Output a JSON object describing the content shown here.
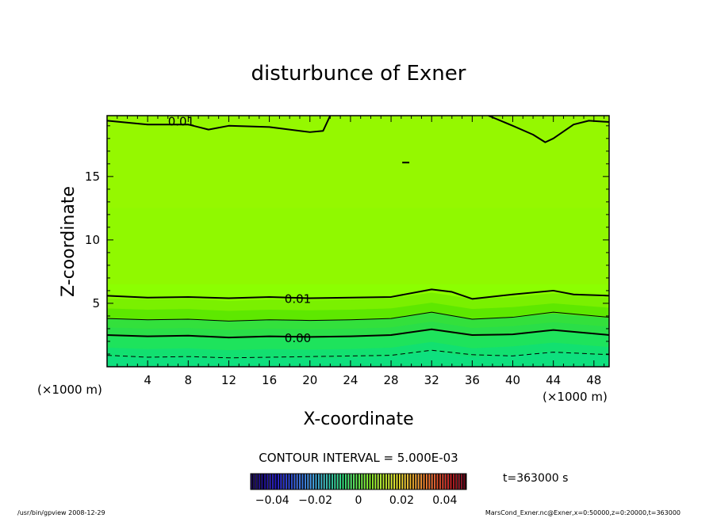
{
  "chart_data": {
    "type": "contour",
    "title": "disturbunce of Exner",
    "xlabel": "X-coordinate",
    "ylabel": "Z-coordinate",
    "x_unit": "(×1000 m)",
    "y_unit": "(×1000 m)",
    "xlim": [
      0,
      49.5
    ],
    "ylim": [
      0,
      19.8
    ],
    "x_ticks": [
      4,
      8,
      12,
      16,
      20,
      24,
      28,
      32,
      36,
      40,
      44,
      48
    ],
    "y_ticks": [
      5,
      10,
      15
    ],
    "contour_interval": "CONTOUR INTERVAL = 5.000E-03",
    "time_label": "t=363000 s",
    "colorbar_ticks": [
      "−0.04",
      "−0.02",
      "0",
      "0.02",
      "0.04"
    ],
    "colorbar_range": [
      -0.05,
      0.05
    ],
    "contour_labels": [
      {
        "text": "0.01",
        "x": 6.0,
        "z": 19.4
      },
      {
        "text": "0.01",
        "x": 17.5,
        "z": 5.4
      },
      {
        "text": "0.00",
        "x": 17.5,
        "z": 2.3
      }
    ],
    "contours": [
      {
        "level": 0.01,
        "style": "thick",
        "points": [
          [
            0,
            19.4
          ],
          [
            4,
            19.1
          ],
          [
            8,
            19.1
          ],
          [
            10,
            18.7
          ],
          [
            12,
            19.0
          ],
          [
            16,
            18.9
          ],
          [
            20,
            18.5
          ],
          [
            21.3,
            18.6
          ],
          [
            22,
            19.8
          ]
        ]
      },
      {
        "level": 0.01,
        "style": "thick",
        "points": [
          [
            37.6,
            19.8
          ],
          [
            40,
            19.0
          ],
          [
            42,
            18.3
          ],
          [
            43.2,
            17.7
          ],
          [
            44,
            18.0
          ],
          [
            46,
            19.1
          ],
          [
            47.5,
            19.4
          ],
          [
            49.5,
            19.3
          ]
        ]
      },
      {
        "level": 0.01,
        "style": "thick",
        "points": [
          [
            0,
            5.6
          ],
          [
            4,
            5.45
          ],
          [
            8,
            5.5
          ],
          [
            12,
            5.4
          ],
          [
            16,
            5.5
          ],
          [
            20,
            5.4
          ],
          [
            24,
            5.45
          ],
          [
            28,
            5.5
          ],
          [
            32,
            6.1
          ],
          [
            34,
            5.9
          ],
          [
            36,
            5.35
          ],
          [
            40,
            5.7
          ],
          [
            44,
            6.0
          ],
          [
            46,
            5.7
          ],
          [
            49.5,
            5.6
          ]
        ]
      },
      {
        "level": 0.005,
        "style": "thin",
        "points": [
          [
            0,
            3.8
          ],
          [
            4,
            3.7
          ],
          [
            8,
            3.75
          ],
          [
            12,
            3.6
          ],
          [
            16,
            3.7
          ],
          [
            20,
            3.65
          ],
          [
            24,
            3.7
          ],
          [
            28,
            3.8
          ],
          [
            32,
            4.3
          ],
          [
            36,
            3.75
          ],
          [
            40,
            3.9
          ],
          [
            44,
            4.3
          ],
          [
            49.5,
            3.9
          ]
        ]
      },
      {
        "level": 0.0,
        "style": "thick",
        "points": [
          [
            0,
            2.5
          ],
          [
            4,
            2.4
          ],
          [
            8,
            2.45
          ],
          [
            12,
            2.3
          ],
          [
            16,
            2.4
          ],
          [
            20,
            2.35
          ],
          [
            24,
            2.4
          ],
          [
            28,
            2.5
          ],
          [
            32,
            2.95
          ],
          [
            36,
            2.5
          ],
          [
            40,
            2.55
          ],
          [
            44,
            2.9
          ],
          [
            49.5,
            2.5
          ]
        ]
      },
      {
        "level": -0.005,
        "style": "dashed",
        "points": [
          [
            0,
            0.9
          ],
          [
            4,
            0.75
          ],
          [
            8,
            0.8
          ],
          [
            12,
            0.7
          ],
          [
            16,
            0.75
          ],
          [
            20,
            0.8
          ],
          [
            24,
            0.85
          ],
          [
            28,
            0.9
          ],
          [
            32,
            1.3
          ],
          [
            36,
            0.95
          ],
          [
            40,
            0.85
          ],
          [
            44,
            1.15
          ],
          [
            49.5,
            0.95
          ]
        ]
      }
    ],
    "fill_bands": [
      {
        "top": 19.8,
        "color": "#8cff00"
      },
      {
        "top": 5.4,
        "color": "#7af000"
      },
      {
        "top": 4.6,
        "color": "#5ee800"
      },
      {
        "top": 3.8,
        "color": "#33e03c"
      },
      {
        "top": 3.1,
        "color": "#2ade48"
      },
      {
        "top": 2.4,
        "color": "#1ee35c"
      },
      {
        "top": 1.5,
        "color": "#12e070"
      },
      {
        "top": 0.8,
        "color": "#0ee07e"
      }
    ],
    "upper_region_color": "#9cf200",
    "mid_region_color": "#92f500"
  },
  "footer": {
    "left": "/usr/bin/gpview   2008-12-29",
    "right": "MarsCond_Exner.nc@Exner,x=0:50000,z=0:20000,t=363000"
  }
}
